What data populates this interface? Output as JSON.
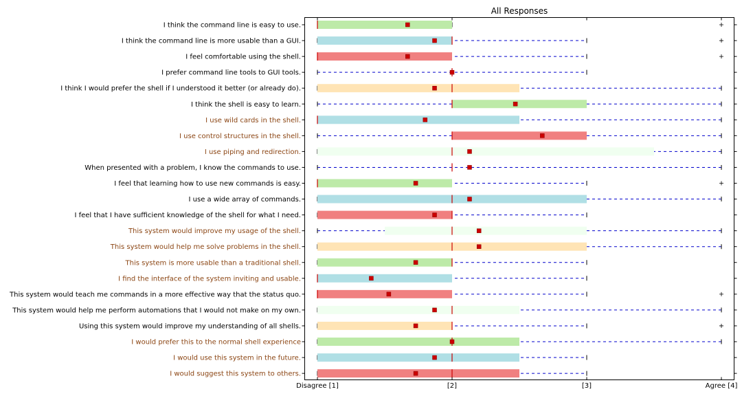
{
  "chart_data": {
    "type": "boxplot",
    "title": "All Responses",
    "xlabel": "",
    "ylabel": "",
    "xlim": [
      0.9,
      4.1
    ],
    "xticks": [
      {
        "value": 1,
        "label": "Disagree [1]"
      },
      {
        "value": 2,
        "label": "[2]"
      },
      {
        "value": 3,
        "label": "[3]"
      },
      {
        "value": 4,
        "label": "Agree [4]"
      }
    ],
    "colors": {
      "label_default": "#000000",
      "label_highlight": "#8b4513",
      "box": [
        "#bdeaa8",
        "#b0dfe5",
        "#f08080",
        "#f0fff0",
        "#ffe4b5"
      ],
      "median": "#cc0000",
      "mean": "#cc0000",
      "whisker": "#0000cc"
    },
    "items": [
      {
        "label": "I think the command line is easy to use.",
        "highlight": false,
        "box_color": "#bdeaa8",
        "q1": 1.0,
        "q3": 2.0,
        "median": 1.0,
        "mean": 1.67,
        "wlo": 1.0,
        "whi": 2.0,
        "outliers": [
          4
        ]
      },
      {
        "label": "I think the command line is more usable than a GUI.",
        "highlight": false,
        "box_color": "#b0dfe5",
        "q1": 1.0,
        "q3": 2.0,
        "median": 2.0,
        "mean": 1.87,
        "wlo": 1.0,
        "whi": 3.0,
        "outliers": [
          4
        ]
      },
      {
        "label": "I feel comfortable using the shell.",
        "highlight": false,
        "box_color": "#f08080",
        "q1": 1.0,
        "q3": 2.0,
        "median": 1.0,
        "mean": 1.67,
        "wlo": 1.0,
        "whi": 3.0,
        "outliers": [
          4
        ]
      },
      {
        "label": "I prefer command line tools to GUI tools.",
        "highlight": false,
        "box_color": "#f0fff0",
        "q1": 2.0,
        "q3": 2.0,
        "median": 2.0,
        "mean": 2.0,
        "wlo": 1.0,
        "whi": 3.0,
        "outliers": []
      },
      {
        "label": "I think I would prefer the shell if I understood it better (or already do).",
        "highlight": false,
        "box_color": "#ffe4b5",
        "q1": 1.0,
        "q3": 2.5,
        "median": 2.0,
        "mean": 1.87,
        "wlo": 1.0,
        "whi": 4.0,
        "outliers": []
      },
      {
        "label": "I think the shell is easy to learn.",
        "highlight": false,
        "box_color": "#bdeaa8",
        "q1": 2.0,
        "q3": 3.0,
        "median": 2.0,
        "mean": 2.47,
        "wlo": 1.0,
        "whi": 4.0,
        "outliers": []
      },
      {
        "label": "I use wild cards in the shell.",
        "highlight": true,
        "box_color": "#b0dfe5",
        "q1": 1.0,
        "q3": 2.5,
        "median": 1.0,
        "mean": 1.8,
        "wlo": 1.0,
        "whi": 4.0,
        "outliers": []
      },
      {
        "label": "I use control structures in the shell.",
        "highlight": true,
        "box_color": "#f08080",
        "q1": 2.0,
        "q3": 3.0,
        "median": 2.0,
        "mean": 2.67,
        "wlo": 1.0,
        "whi": 4.0,
        "outliers": []
      },
      {
        "label": "I use piping and redirection.",
        "highlight": true,
        "box_color": "#f0fff0",
        "q1": 1.0,
        "q3": 3.5,
        "median": 2.0,
        "mean": 2.13,
        "wlo": 1.0,
        "whi": 4.0,
        "outliers": []
      },
      {
        "label": "When presented with a problem, I know the commands to use.",
        "highlight": false,
        "box_color": "#ffe4b5",
        "q1": 2.0,
        "q3": 2.0,
        "median": 2.0,
        "mean": 2.13,
        "wlo": 1.0,
        "whi": 4.0,
        "outliers": []
      },
      {
        "label": "I feel that learning how to use new commands is easy.",
        "highlight": false,
        "box_color": "#bdeaa8",
        "q1": 1.0,
        "q3": 2.0,
        "median": 1.0,
        "mean": 1.73,
        "wlo": 1.0,
        "whi": 3.0,
        "outliers": [
          4
        ]
      },
      {
        "label": "I use a wide array of commands.",
        "highlight": false,
        "box_color": "#b0dfe5",
        "q1": 1.0,
        "q3": 3.0,
        "median": 2.0,
        "mean": 2.13,
        "wlo": 1.0,
        "whi": 4.0,
        "outliers": []
      },
      {
        "label": "I feel that I have sufficient knowledge of the shell for what I need.",
        "highlight": false,
        "box_color": "#f08080",
        "q1": 1.0,
        "q3": 2.0,
        "median": 2.0,
        "mean": 1.87,
        "wlo": 1.0,
        "whi": 3.0,
        "outliers": []
      },
      {
        "label": "This system would improve my usage of the shell.",
        "highlight": true,
        "box_color": "#f0fff0",
        "q1": 1.5,
        "q3": 3.0,
        "median": 2.0,
        "mean": 2.2,
        "wlo": 1.0,
        "whi": 4.0,
        "outliers": []
      },
      {
        "label": "This system would help me solve problems in the shell.",
        "highlight": true,
        "box_color": "#ffe4b5",
        "q1": 1.0,
        "q3": 3.0,
        "median": 2.0,
        "mean": 2.2,
        "wlo": 1.0,
        "whi": 4.0,
        "outliers": []
      },
      {
        "label": "This system is more usable than a traditional shell.",
        "highlight": true,
        "box_color": "#bdeaa8",
        "q1": 1.0,
        "q3": 2.0,
        "median": 2.0,
        "mean": 1.73,
        "wlo": 1.0,
        "whi": 3.0,
        "outliers": []
      },
      {
        "label": "I find the interface of the system inviting and usable.",
        "highlight": true,
        "box_color": "#b0dfe5",
        "q1": 1.0,
        "q3": 2.0,
        "median": 1.0,
        "mean": 1.4,
        "wlo": 1.0,
        "whi": 3.0,
        "outliers": []
      },
      {
        "label": "This system would teach me commands in a more effective way that  the status quo.",
        "highlight": false,
        "box_color": "#f08080",
        "q1": 1.0,
        "q3": 2.0,
        "median": 1.0,
        "mean": 1.53,
        "wlo": 1.0,
        "whi": 3.0,
        "outliers": [
          4
        ]
      },
      {
        "label": "This system would help me perform automations that I would not make on my own.",
        "highlight": false,
        "box_color": "#f0fff0",
        "q1": 1.0,
        "q3": 2.5,
        "median": 2.0,
        "mean": 1.87,
        "wlo": 1.0,
        "whi": 4.0,
        "outliers": []
      },
      {
        "label": "Using this system would improve my understanding of all shells.",
        "highlight": false,
        "box_color": "#ffe4b5",
        "q1": 1.0,
        "q3": 2.0,
        "median": 2.0,
        "mean": 1.73,
        "wlo": 1.0,
        "whi": 3.0,
        "outliers": [
          4
        ]
      },
      {
        "label": "I would prefer this to the normal shell experience",
        "highlight": true,
        "box_color": "#bdeaa8",
        "q1": 1.0,
        "q3": 2.5,
        "median": 2.0,
        "mean": 2.0,
        "wlo": 1.0,
        "whi": 4.0,
        "outliers": []
      },
      {
        "label": "I would use this system in the future.",
        "highlight": true,
        "box_color": "#b0dfe5",
        "q1": 1.0,
        "q3": 2.5,
        "median": 2.0,
        "mean": 1.87,
        "wlo": 1.0,
        "whi": 3.0,
        "outliers": []
      },
      {
        "label": "I would suggest this system to others.",
        "highlight": true,
        "box_color": "#f08080",
        "q1": 1.0,
        "q3": 2.5,
        "median": 2.0,
        "mean": 1.73,
        "wlo": 1.0,
        "whi": 3.0,
        "outliers": []
      }
    ]
  }
}
